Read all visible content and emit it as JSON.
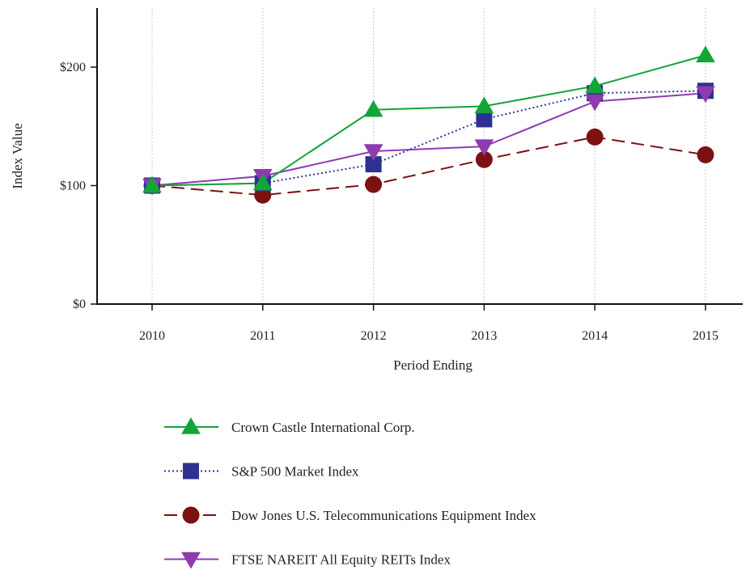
{
  "chart_data": {
    "type": "line",
    "title": "",
    "xlabel": "Period Ending",
    "ylabel": "Index Value",
    "x": [
      "2010",
      "2011",
      "2012",
      "2013",
      "2014",
      "2015"
    ],
    "ylim": [
      0,
      250
    ],
    "y_ticks": [
      {
        "value": 0,
        "label": "$0"
      },
      {
        "value": 100,
        "label": "$100"
      },
      {
        "value": 200,
        "label": "$200"
      }
    ],
    "grid": "vertical dotted lines at each period",
    "legend_position": "bottom",
    "series": [
      {
        "name": "Crown Castle International Corp.",
        "values": [
          100,
          102,
          164,
          167,
          184,
          210
        ],
        "color": "#13a538",
        "line_style": "solid",
        "marker": "triangle-up"
      },
      {
        "name": "S&P 500 Market Index",
        "values": [
          100,
          102,
          118,
          156,
          178,
          180
        ],
        "color": "#2e3192",
        "line_style": "dotted",
        "marker": "square"
      },
      {
        "name": "Dow Jones U.S. Telecommunications Equipment Index",
        "values": [
          100,
          92,
          101,
          122,
          141,
          126
        ],
        "color": "#7b1113",
        "line_style": "dashed",
        "marker": "circle"
      },
      {
        "name": "FTSE NAREIT All Equity REITs Index",
        "values": [
          100,
          108,
          129,
          133,
          171,
          178
        ],
        "color": "#8e3bb0",
        "line_style": "solid",
        "marker": "triangle-down"
      }
    ]
  }
}
